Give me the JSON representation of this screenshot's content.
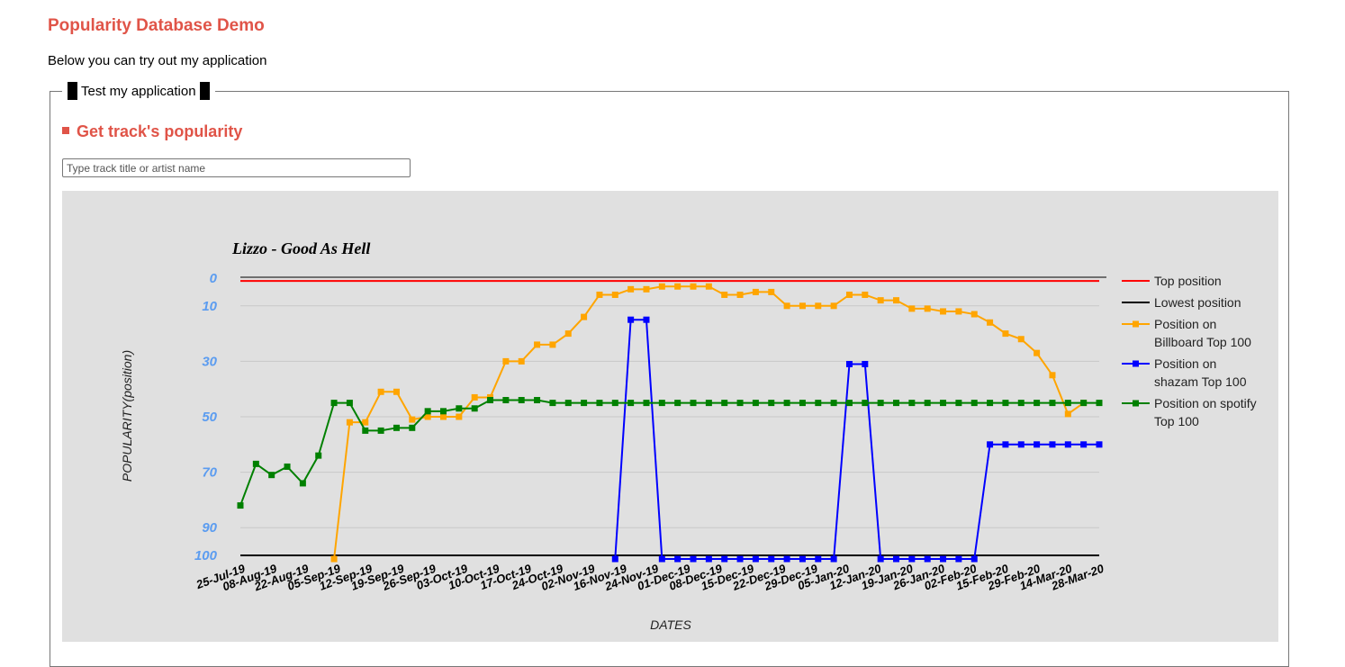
{
  "header": {
    "title": "Popularity Database Demo",
    "intro": "Below you can try out my application"
  },
  "panel": {
    "legend": "Test my application",
    "section_title": "Get track's popularity",
    "search": {
      "value": "",
      "placeholder": "Type track title or artist name"
    }
  },
  "colors": {
    "accent": "#e05448",
    "chart_bg": "#e0e0e0",
    "top": "#ff0000",
    "lowest": "#000000",
    "billboard": "#ffa500",
    "shazam": "#0000ff",
    "spotify": "#008000",
    "ytick": "#5b9cf0"
  },
  "chart_data": {
    "type": "line",
    "title": "Lizzo - Good As Hell",
    "xlabel": "DATES",
    "ylabel": "POPULARITY(position)",
    "y_reversed": true,
    "ylim": [
      0,
      100
    ],
    "yticks": [
      0,
      10,
      30,
      50,
      70,
      90,
      100
    ],
    "grid": true,
    "legend_position": "right",
    "x_tick_labels": [
      "25-Jul-19",
      "08-Aug-19",
      "22-Aug-19",
      "05-Sep-19",
      "12-Sep-19",
      "19-Sep-19",
      "26-Sep-19",
      "03-Oct-19",
      "10-Oct-19",
      "17-Oct-19",
      "24-Oct-19",
      "02-Nov-19",
      "16-Nov-19",
      "24-Nov-19",
      "01-Dec-19",
      "08-Dec-19",
      "15-Dec-19",
      "22-Dec-19",
      "29-Dec-19",
      "05-Jan-20",
      "12-Jan-20",
      "19-Jan-20",
      "26-Jan-20",
      "02-Feb-20",
      "15-Feb-20",
      "29-Feb-20",
      "14-Mar-20",
      "28-Mar-20"
    ],
    "series": [
      {
        "name": "Top position",
        "color": "#ff0000",
        "line_only": true,
        "values": [
          1,
          1,
          1,
          1,
          1,
          1,
          1,
          1,
          1,
          1,
          1,
          1,
          1,
          1,
          1,
          1,
          1,
          1,
          1,
          1,
          1,
          1,
          1,
          1,
          1,
          1,
          1,
          1,
          1,
          1,
          1,
          1,
          1,
          1,
          1,
          1,
          1,
          1,
          1,
          1,
          1,
          1,
          1,
          1,
          1,
          1,
          1,
          1,
          1,
          1,
          1,
          1,
          1,
          1,
          1,
          1
        ]
      },
      {
        "name": "Lowest position",
        "color": "#000000",
        "line_only": true,
        "values": [
          100,
          100,
          100,
          100,
          100,
          100,
          100,
          100,
          100,
          100,
          100,
          100,
          100,
          100,
          100,
          100,
          100,
          100,
          100,
          100,
          100,
          100,
          100,
          100,
          100,
          100,
          100,
          100,
          100,
          100,
          100,
          100,
          100,
          100,
          100,
          100,
          100,
          100,
          100,
          100,
          100,
          100,
          100,
          100,
          100,
          100,
          100,
          100,
          100,
          100,
          100,
          100,
          100,
          100,
          100,
          100
        ]
      },
      {
        "name": "Position on Billboard Top 100",
        "color": "#ffa500",
        "values": [
          null,
          null,
          null,
          null,
          null,
          null,
          101,
          52,
          52,
          41,
          41,
          51,
          50,
          50,
          50,
          43,
          43,
          30,
          30,
          24,
          24,
          20,
          14,
          6,
          6,
          4,
          4,
          3,
          3,
          3,
          3,
          6,
          6,
          5,
          5,
          10,
          10,
          10,
          10,
          6,
          6,
          8,
          8,
          11,
          11,
          12,
          12,
          13,
          16,
          20,
          22,
          27,
          35,
          49,
          45,
          null
        ]
      },
      {
        "name": "Position on shazam Top 100",
        "color": "#0000ff",
        "values": [
          null,
          null,
          null,
          null,
          null,
          null,
          null,
          null,
          null,
          null,
          null,
          null,
          null,
          null,
          null,
          null,
          null,
          null,
          null,
          null,
          null,
          null,
          null,
          null,
          101,
          15,
          15,
          101,
          101,
          101,
          101,
          101,
          101,
          101,
          101,
          101,
          101,
          101,
          101,
          31,
          31,
          101,
          101,
          101,
          101,
          101,
          101,
          101,
          60,
          60,
          60,
          60,
          60,
          60,
          60,
          60
        ]
      },
      {
        "name": "Position on spotify Top 100",
        "color": "#008000",
        "values": [
          82,
          67,
          71,
          68,
          74,
          64,
          45,
          45,
          55,
          55,
          54,
          54,
          48,
          48,
          47,
          47,
          44,
          44,
          44,
          44,
          45,
          45,
          45,
          45,
          45,
          45,
          45,
          45,
          45,
          45,
          45,
          45,
          45,
          45,
          45,
          45,
          45,
          45,
          45,
          45,
          45,
          45,
          45,
          45,
          45,
          45,
          45,
          45,
          45,
          45,
          45,
          45,
          45,
          45,
          45,
          45
        ]
      }
    ],
    "legend_entries": [
      {
        "lines": [
          "Top position"
        ],
        "color": "#ff0000",
        "marker": false
      },
      {
        "lines": [
          "Lowest position"
        ],
        "color": "#000000",
        "marker": false
      },
      {
        "lines": [
          "Position on",
          "Billboard Top 100"
        ],
        "color": "#ffa500",
        "marker": true
      },
      {
        "lines": [
          "Position on",
          "shazam Top 100"
        ],
        "color": "#0000ff",
        "marker": true
      },
      {
        "lines": [
          "Position on spotify",
          "Top 100"
        ],
        "color": "#008000",
        "marker": true
      }
    ]
  }
}
